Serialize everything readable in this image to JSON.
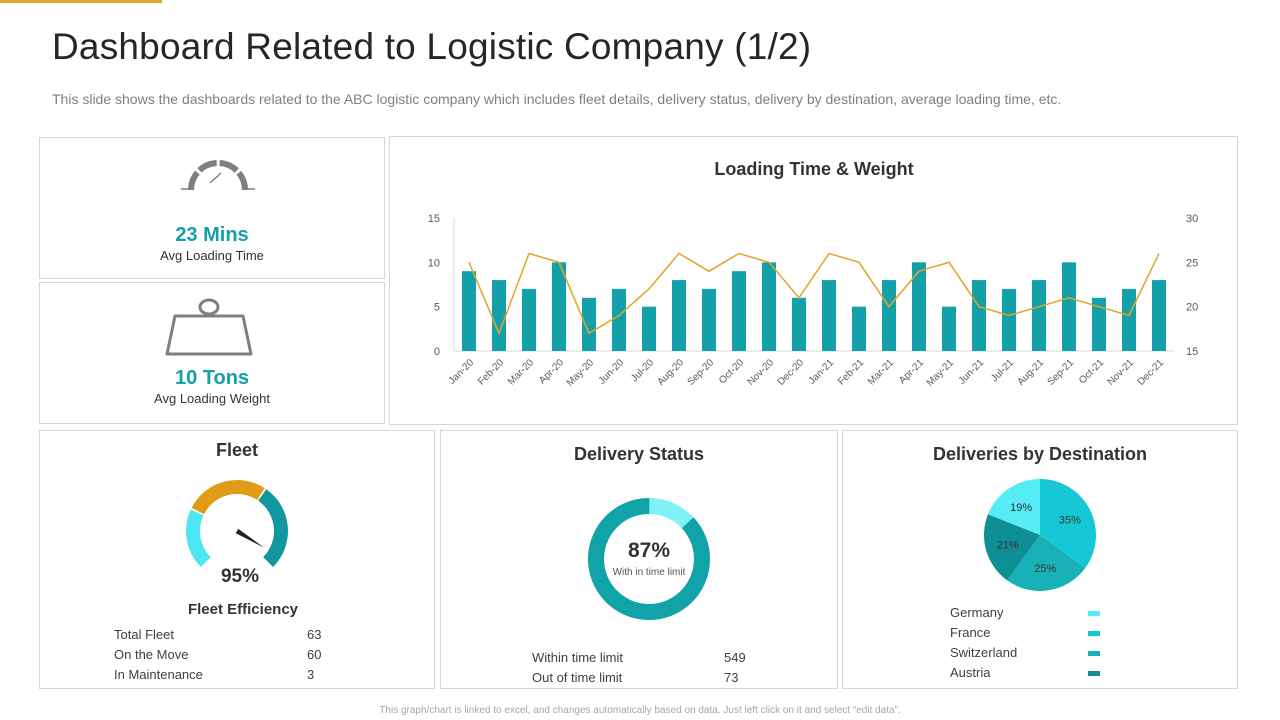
{
  "header": {
    "title": "Dashboard Related to Logistic Company (1/2)",
    "subtitle": "This slide shows the dashboards related to the ABC logistic company which includes fleet details, delivery status, delivery by destination, average loading time, etc."
  },
  "kpis": {
    "loading_time": {
      "value": "23 Mins",
      "label": "Avg Loading Time",
      "icon": "stopwatch-icon"
    },
    "loading_weight": {
      "value": "10 Tons",
      "label": "Avg Loading Weight",
      "icon": "weight-icon"
    }
  },
  "colors": {
    "accent": "#e0a526",
    "teal": "#14a0a8",
    "line": "#e0a526",
    "gauge_light": "#4ee6f2",
    "gauge_orange": "#e09c16",
    "gauge_teal": "#12979e",
    "donut_main": "#12a3a9",
    "donut_light": "#7ef2f6",
    "pie": [
      "#55ecf5",
      "#16c8d5",
      "#18b1b7",
      "#0d8f94"
    ]
  },
  "fleet": {
    "title": "Fleet",
    "value": "95%",
    "subtitle": "Fleet Efficiency",
    "efficiency": 0.95,
    "rows": [
      {
        "label": "Total Fleet",
        "value": "63"
      },
      {
        "label": "On the Move",
        "value": "60"
      },
      {
        "label": "In Maintenance",
        "value": "3"
      }
    ]
  },
  "delivery": {
    "title": "Delivery Status",
    "value": "87%",
    "caption": "With in time limit",
    "fraction": 0.87,
    "rows": [
      {
        "label": "Within time limit",
        "value": "549"
      },
      {
        "label": "Out of time limit",
        "value": "73"
      }
    ]
  },
  "destination": {
    "title": "Deliveries by Destination"
  },
  "footer": "This graph/chart is linked to excel, and changes automatically based on data. Just left click on it and select “edit data”.",
  "chart_data": [
    {
      "type": "bar",
      "title": "Loading Time & Weight",
      "categories": [
        "Jan-20",
        "Feb-20",
        "Mar-20",
        "Apr-20",
        "May-20",
        "Jun-20",
        "Jul-20",
        "Aug-20",
        "Sep-20",
        "Oct-20",
        "Nov-20",
        "Dec-20",
        "Jan-21",
        "Feb-21",
        "Mar-21",
        "Apr-21",
        "May-21",
        "Jun-21",
        "Jul-21",
        "Aug-21",
        "Sep-21",
        "Oct-21",
        "Nov-21",
        "Dec-21"
      ],
      "series": [
        {
          "type": "bar",
          "axis": "left",
          "values": [
            9,
            8,
            7,
            10,
            6,
            7,
            5,
            8,
            7,
            9,
            10,
            6,
            8,
            5,
            8,
            10,
            5,
            8,
            7,
            8,
            10,
            6,
            7,
            8
          ]
        },
        {
          "type": "line",
          "axis": "right",
          "values": [
            25,
            17,
            26,
            25,
            17,
            19,
            22,
            26,
            24,
            26,
            25,
            21,
            26,
            25,
            20,
            24,
            25,
            20,
            19,
            20,
            21,
            20,
            19,
            26
          ]
        }
      ],
      "left_axis": {
        "ylim": [
          0,
          15
        ],
        "ticks": [
          "0",
          "5",
          "10",
          "15"
        ]
      },
      "right_axis": {
        "ylim": [
          15,
          30
        ],
        "ticks": [
          "15",
          "20",
          "25",
          "30"
        ]
      },
      "grid": false
    },
    {
      "type": "pie",
      "title": "Deliveries by Destination",
      "labels": [
        "Germany",
        "France",
        "Switzerland",
        "Austria"
      ],
      "values": [
        19,
        35,
        25,
        21
      ],
      "value_labels": [
        "19%",
        "35%",
        "25%",
        "21%"
      ],
      "legend": "bottom"
    }
  ]
}
